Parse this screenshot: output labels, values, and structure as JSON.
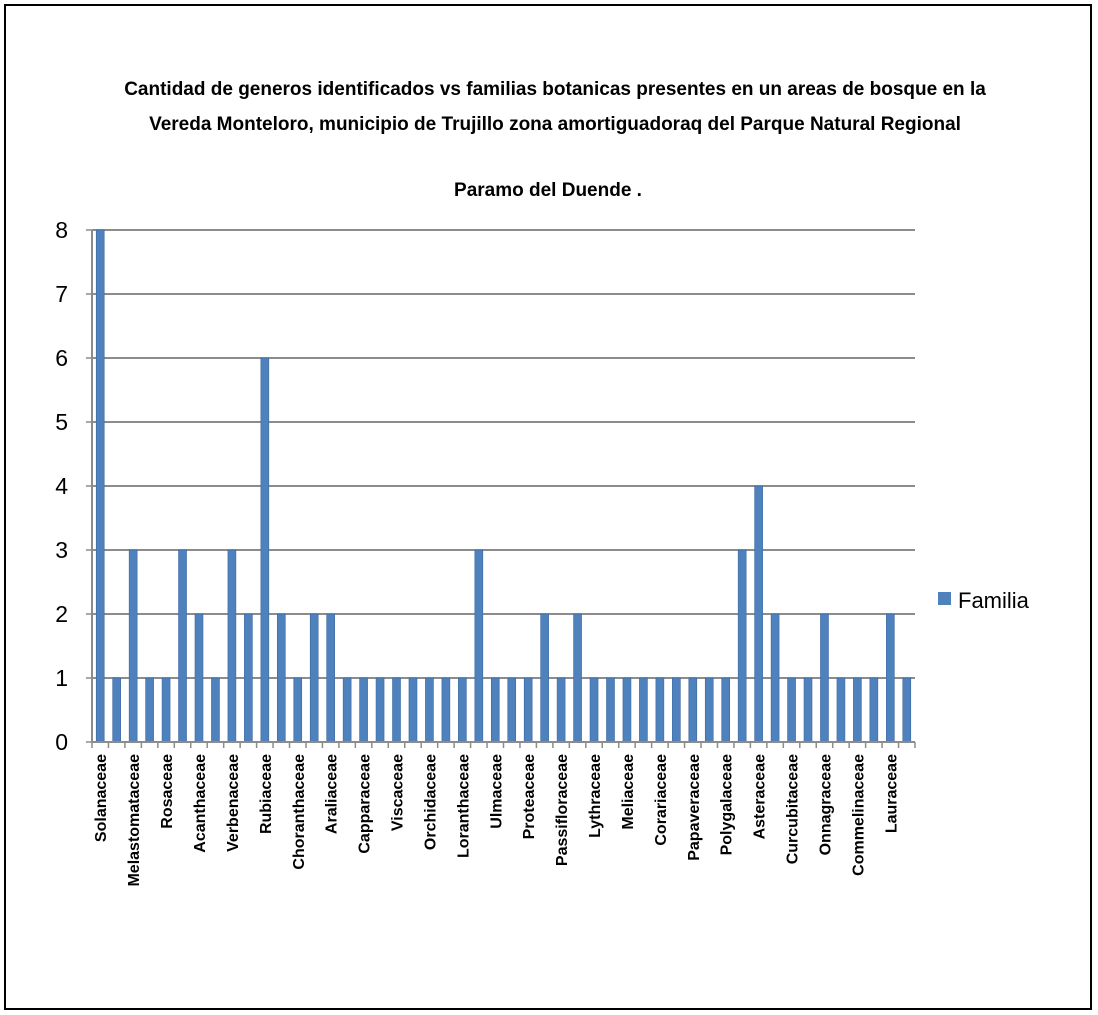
{
  "chart_data": {
    "type": "bar",
    "title_lines": [
      "Cantidad de generos  identificados vs familias botanicas presentes en un areas de bosque en la",
      "Vereda Monteloro, municipio de Trujillo zona amortiguadoraq del Parque Natural Regional",
      "Paramo del Duende ."
    ],
    "xlabel": "",
    "ylabel": "",
    "ylim": [
      0,
      8
    ],
    "yticks": [
      "0",
      "1",
      "2",
      "3",
      "4",
      "5",
      "6",
      "7",
      "8"
    ],
    "grid": true,
    "legend_position": "right",
    "bar_color": "#4F81BD",
    "categories": [
      "Solanaceae",
      "",
      "Melastomataceae",
      "",
      "Rosaceae",
      "",
      "Acanthaceae",
      "",
      "Verbenaceae",
      "",
      "Rubiaceae",
      "",
      "Choranthaceae",
      "",
      "Araliaceae",
      "",
      "Capparaceae",
      "",
      "Viscaceae",
      "",
      "Orchidaceae",
      "",
      "Loranthaceae",
      "",
      "Ulmaceae",
      "",
      "Proteaceae",
      "",
      "Passifloraceae",
      "",
      "Lythraceae",
      "",
      "Meliaceae",
      "",
      "Corariaceae",
      "",
      "Papaveraceae",
      "",
      "Polygalaceae",
      "",
      "Asteraceae",
      "",
      "Curcubitaceae",
      "",
      "Onnagraceae",
      "",
      "Commelinaceae",
      "",
      "Lauraceae",
      ""
    ],
    "series": [
      {
        "name": "Familia",
        "values": [
          8,
          1,
          3,
          1,
          1,
          3,
          2,
          1,
          3,
          2,
          6,
          2,
          1,
          2,
          2,
          1,
          1,
          1,
          1,
          1,
          1,
          1,
          1,
          3,
          1,
          1,
          1,
          2,
          1,
          2,
          1,
          1,
          1,
          1,
          1,
          1,
          1,
          1,
          1,
          3,
          4,
          2,
          1,
          1,
          2,
          1,
          1,
          1,
          2,
          1
        ]
      }
    ]
  }
}
